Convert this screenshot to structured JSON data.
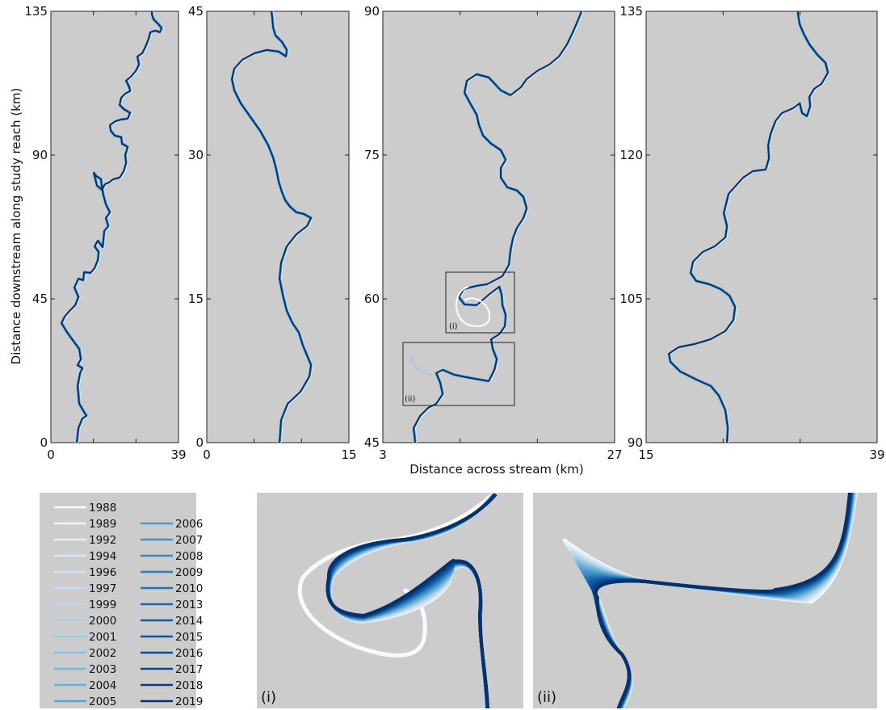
{
  "chart_data": {
    "type": "line",
    "description_free": true,
    "ylabel": "Distance downstream along study reach (km)",
    "xlabel": "Distance across stream (km)",
    "panels": [
      {
        "xlim": [
          0,
          39
        ],
        "ylim": [
          0,
          135
        ],
        "xticks": [
          "0",
          "39"
        ],
        "yticks": [
          "0",
          "45",
          "90",
          "135"
        ]
      },
      {
        "xlim": [
          0,
          15
        ],
        "ylim": [
          0,
          45
        ],
        "xticks": [
          "0",
          "15"
        ],
        "yticks": [
          "0",
          "15",
          "30",
          "45"
        ]
      },
      {
        "xlim": [
          3,
          27
        ],
        "ylim": [
          45,
          90
        ],
        "xticks": [
          "3",
          "27"
        ],
        "yticks": [
          "45",
          "60",
          "75",
          "90"
        ]
      },
      {
        "xlim": [
          15,
          39
        ],
        "ylim": [
          90,
          135
        ],
        "xticks": [
          "15",
          "39"
        ],
        "yticks": [
          "90",
          "105",
          "120",
          "135"
        ]
      }
    ],
    "inset_labels": [
      "(i)",
      "(ii)"
    ],
    "series": [
      {
        "name": "1988",
        "color": "#f7fbff"
      },
      {
        "name": "1989",
        "color": "#eef5fc"
      },
      {
        "name": "1992",
        "color": "#e3eef9"
      },
      {
        "name": "1994",
        "color": "#d9e8f5"
      },
      {
        "name": "1996",
        "color": "#d0e1f2"
      },
      {
        "name": "1997",
        "color": "#c6dbef"
      },
      {
        "name": "1999",
        "color": "#b9d6ea"
      },
      {
        "name": "2000",
        "color": "#abd0e6"
      },
      {
        "name": "2001",
        "color": "#9ecae1"
      },
      {
        "name": "2002",
        "color": "#8cc0dd"
      },
      {
        "name": "2003",
        "color": "#7ab6d9"
      },
      {
        "name": "2004",
        "color": "#6baed6"
      },
      {
        "name": "2005",
        "color": "#5ca4d0"
      },
      {
        "name": "2006",
        "color": "#4f9bcb"
      },
      {
        "name": "2007",
        "color": "#4292c6"
      },
      {
        "name": "2008",
        "color": "#3787c0"
      },
      {
        "name": "2009",
        "color": "#2c7cba"
      },
      {
        "name": "2010",
        "color": "#2171b5"
      },
      {
        "name": "2013",
        "color": "#1966ad"
      },
      {
        "name": "2014",
        "color": "#125ca4"
      },
      {
        "name": "2015",
        "color": "#0b559f"
      },
      {
        "name": "2016",
        "color": "#084d96"
      },
      {
        "name": "2017",
        "color": "#08458a"
      },
      {
        "name": "2018",
        "color": "#083d7f"
      },
      {
        "name": "2019",
        "color": "#08306b"
      }
    ]
  }
}
